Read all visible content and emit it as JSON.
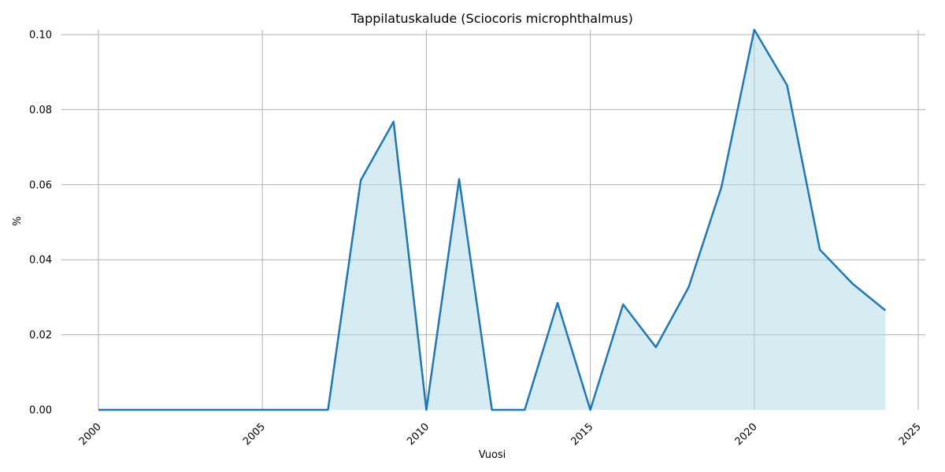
{
  "chart_data": {
    "type": "area",
    "title": "Tappilatuskalude (Sciocoris microphthalmus)",
    "xlabel": "Vuosi",
    "ylabel": "%",
    "xlim": [
      2000,
      2025
    ],
    "ylim": [
      0,
      0.1
    ],
    "x_ticks": [
      "2000",
      "2005",
      "2010",
      "2015",
      "2020",
      "2025"
    ],
    "y_ticks": [
      "0.00",
      "0.02",
      "0.04",
      "0.06",
      "0.08",
      "0.10"
    ],
    "grid": true,
    "line_color": "#1f77b4",
    "fill_color": "#add8e6",
    "series": [
      {
        "x": [
          2000,
          2001,
          2002,
          2003,
          2004,
          2005,
          2006,
          2007,
          2008,
          2009,
          2010,
          2011,
          2012,
          2013,
          2014,
          2015,
          2016,
          2017,
          2018,
          2019,
          2020,
          2021,
          2022,
          2023,
          2024
        ],
        "values": [
          0,
          0,
          0,
          0,
          0,
          0,
          0,
          0,
          0.0612,
          0.0768,
          0,
          0.0615,
          0,
          0,
          0.0285,
          0,
          0.0281,
          0.0167,
          0.0327,
          0.0594,
          0.1013,
          0.0865,
          0.0427,
          0.0336,
          0.0265
        ]
      }
    ]
  }
}
